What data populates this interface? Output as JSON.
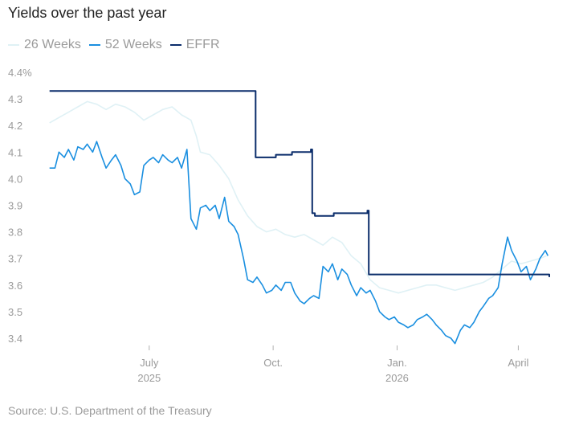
{
  "chart_data": {
    "type": "line",
    "title": "Yields over the past year",
    "source": "Source: U.S. Department of the Treasury",
    "ylim": [
      3.4,
      4.4
    ],
    "y_ticks": [
      {
        "value": 4.4,
        "label": "4.4%"
      },
      {
        "value": 4.3,
        "label": "4.3"
      },
      {
        "value": 4.2,
        "label": "4.2"
      },
      {
        "value": 4.1,
        "label": "4.1"
      },
      {
        "value": 4.0,
        "label": "4.0"
      },
      {
        "value": 3.9,
        "label": "3.9"
      },
      {
        "value": 3.8,
        "label": "3.8"
      },
      {
        "value": 3.7,
        "label": "3.7"
      },
      {
        "value": 3.6,
        "label": "3.6"
      },
      {
        "value": 3.5,
        "label": "3.5"
      },
      {
        "value": 3.4,
        "label": "3.4"
      }
    ],
    "xlim": [
      "2025-04-17",
      "2026-04-24"
    ],
    "x_ticks": [
      {
        "date": "2025-07-01",
        "label": "July",
        "sublabel": "2025"
      },
      {
        "date": "2025-10-01",
        "label": "Oct.",
        "sublabel": ""
      },
      {
        "date": "2026-01-01",
        "label": "Jan.",
        "sublabel": "2026"
      },
      {
        "date": "2026-04-01",
        "label": "April",
        "sublabel": ""
      }
    ],
    "grid": false,
    "legend_position": "top-left",
    "series": [
      {
        "name": "26 Weeks",
        "color": "#dff1f5",
        "step": false,
        "points": [
          [
            "2025-04-18",
            4.21
          ],
          [
            "2025-04-25",
            4.23
          ],
          [
            "2025-05-02",
            4.25
          ],
          [
            "2025-05-09",
            4.27
          ],
          [
            "2025-05-16",
            4.29
          ],
          [
            "2025-05-23",
            4.28
          ],
          [
            "2025-05-30",
            4.26
          ],
          [
            "2025-06-06",
            4.28
          ],
          [
            "2025-06-13",
            4.27
          ],
          [
            "2025-06-20",
            4.25
          ],
          [
            "2025-06-27",
            4.22
          ],
          [
            "2025-07-04",
            4.24
          ],
          [
            "2025-07-11",
            4.26
          ],
          [
            "2025-07-18",
            4.27
          ],
          [
            "2025-07-25",
            4.24
          ],
          [
            "2025-08-01",
            4.22
          ],
          [
            "2025-08-05",
            4.16
          ],
          [
            "2025-08-08",
            4.1
          ],
          [
            "2025-08-15",
            4.09
          ],
          [
            "2025-08-22",
            4.05
          ],
          [
            "2025-08-29",
            4.0
          ],
          [
            "2025-09-05",
            3.92
          ],
          [
            "2025-09-12",
            3.86
          ],
          [
            "2025-09-19",
            3.82
          ],
          [
            "2025-09-26",
            3.8
          ],
          [
            "2025-10-03",
            3.81
          ],
          [
            "2025-10-10",
            3.79
          ],
          [
            "2025-10-17",
            3.78
          ],
          [
            "2025-10-24",
            3.79
          ],
          [
            "2025-10-31",
            3.77
          ],
          [
            "2025-11-07",
            3.75
          ],
          [
            "2025-11-14",
            3.78
          ],
          [
            "2025-11-21",
            3.76
          ],
          [
            "2025-11-28",
            3.71
          ],
          [
            "2025-12-05",
            3.68
          ],
          [
            "2025-12-12",
            3.62
          ],
          [
            "2025-12-19",
            3.59
          ],
          [
            "2025-12-26",
            3.58
          ],
          [
            "2026-01-02",
            3.57
          ],
          [
            "2026-01-09",
            3.58
          ],
          [
            "2026-01-16",
            3.59
          ],
          [
            "2026-01-23",
            3.6
          ],
          [
            "2026-01-30",
            3.6
          ],
          [
            "2026-02-06",
            3.59
          ],
          [
            "2026-02-13",
            3.58
          ],
          [
            "2026-02-20",
            3.59
          ],
          [
            "2026-02-27",
            3.6
          ],
          [
            "2026-03-06",
            3.61
          ],
          [
            "2026-03-13",
            3.63
          ],
          [
            "2026-03-20",
            3.66
          ],
          [
            "2026-03-27",
            3.69
          ],
          [
            "2026-04-03",
            3.68
          ],
          [
            "2026-04-10",
            3.69
          ],
          [
            "2026-04-17",
            3.7
          ],
          [
            "2026-04-22",
            3.71
          ]
        ]
      },
      {
        "name": "52 Weeks",
        "color": "#1a8fe0",
        "step": false,
        "points": [
          [
            "2025-04-18",
            4.04
          ],
          [
            "2025-04-22",
            4.04
          ],
          [
            "2025-04-25",
            4.1
          ],
          [
            "2025-04-29",
            4.08
          ],
          [
            "2025-05-02",
            4.11
          ],
          [
            "2025-05-06",
            4.07
          ],
          [
            "2025-05-09",
            4.12
          ],
          [
            "2025-05-13",
            4.11
          ],
          [
            "2025-05-16",
            4.13
          ],
          [
            "2025-05-20",
            4.1
          ],
          [
            "2025-05-23",
            4.14
          ],
          [
            "2025-05-27",
            4.08
          ],
          [
            "2025-05-30",
            4.04
          ],
          [
            "2025-06-03",
            4.07
          ],
          [
            "2025-06-06",
            4.09
          ],
          [
            "2025-06-10",
            4.05
          ],
          [
            "2025-06-13",
            4.0
          ],
          [
            "2025-06-17",
            3.98
          ],
          [
            "2025-06-20",
            3.94
          ],
          [
            "2025-06-24",
            3.95
          ],
          [
            "2025-06-27",
            4.05
          ],
          [
            "2025-07-01",
            4.07
          ],
          [
            "2025-07-04",
            4.08
          ],
          [
            "2025-07-08",
            4.06
          ],
          [
            "2025-07-11",
            4.09
          ],
          [
            "2025-07-15",
            4.07
          ],
          [
            "2025-07-18",
            4.06
          ],
          [
            "2025-07-22",
            4.08
          ],
          [
            "2025-07-25",
            4.04
          ],
          [
            "2025-07-29",
            4.11
          ],
          [
            "2025-08-01",
            3.85
          ],
          [
            "2025-08-05",
            3.81
          ],
          [
            "2025-08-08",
            3.89
          ],
          [
            "2025-08-12",
            3.9
          ],
          [
            "2025-08-15",
            3.88
          ],
          [
            "2025-08-19",
            3.9
          ],
          [
            "2025-08-22",
            3.85
          ],
          [
            "2025-08-26",
            3.93
          ],
          [
            "2025-08-29",
            3.84
          ],
          [
            "2025-09-02",
            3.82
          ],
          [
            "2025-09-05",
            3.79
          ],
          [
            "2025-09-09",
            3.7
          ],
          [
            "2025-09-12",
            3.62
          ],
          [
            "2025-09-16",
            3.61
          ],
          [
            "2025-09-19",
            3.63
          ],
          [
            "2025-09-23",
            3.6
          ],
          [
            "2025-09-26",
            3.57
          ],
          [
            "2025-09-30",
            3.58
          ],
          [
            "2025-10-03",
            3.6
          ],
          [
            "2025-10-07",
            3.58
          ],
          [
            "2025-10-10",
            3.61
          ],
          [
            "2025-10-14",
            3.61
          ],
          [
            "2025-10-17",
            3.57
          ],
          [
            "2025-10-21",
            3.54
          ],
          [
            "2025-10-24",
            3.53
          ],
          [
            "2025-10-28",
            3.55
          ],
          [
            "2025-10-31",
            3.56
          ],
          [
            "2025-11-04",
            3.55
          ],
          [
            "2025-11-07",
            3.67
          ],
          [
            "2025-11-11",
            3.65
          ],
          [
            "2025-11-14",
            3.68
          ],
          [
            "2025-11-18",
            3.62
          ],
          [
            "2025-11-21",
            3.66
          ],
          [
            "2025-11-25",
            3.64
          ],
          [
            "2025-11-28",
            3.6
          ],
          [
            "2025-12-02",
            3.56
          ],
          [
            "2025-12-05",
            3.59
          ],
          [
            "2025-12-09",
            3.57
          ],
          [
            "2025-12-12",
            3.58
          ],
          [
            "2025-12-16",
            3.54
          ],
          [
            "2025-12-19",
            3.5
          ],
          [
            "2025-12-23",
            3.48
          ],
          [
            "2025-12-26",
            3.47
          ],
          [
            "2025-12-30",
            3.48
          ],
          [
            "2026-01-02",
            3.46
          ],
          [
            "2026-01-06",
            3.45
          ],
          [
            "2026-01-09",
            3.44
          ],
          [
            "2026-01-13",
            3.45
          ],
          [
            "2026-01-16",
            3.47
          ],
          [
            "2026-01-20",
            3.48
          ],
          [
            "2026-01-23",
            3.49
          ],
          [
            "2026-01-27",
            3.47
          ],
          [
            "2026-01-30",
            3.45
          ],
          [
            "2026-02-03",
            3.43
          ],
          [
            "2026-02-06",
            3.41
          ],
          [
            "2026-02-10",
            3.4
          ],
          [
            "2026-02-13",
            3.38
          ],
          [
            "2026-02-17",
            3.43
          ],
          [
            "2026-02-20",
            3.45
          ],
          [
            "2026-02-24",
            3.44
          ],
          [
            "2026-02-27",
            3.46
          ],
          [
            "2026-03-03",
            3.5
          ],
          [
            "2026-03-06",
            3.52
          ],
          [
            "2026-03-10",
            3.55
          ],
          [
            "2026-03-13",
            3.56
          ],
          [
            "2026-03-17",
            3.59
          ],
          [
            "2026-03-20",
            3.68
          ],
          [
            "2026-03-24",
            3.78
          ],
          [
            "2026-03-27",
            3.73
          ],
          [
            "2026-03-31",
            3.69
          ],
          [
            "2026-04-03",
            3.65
          ],
          [
            "2026-04-07",
            3.67
          ],
          [
            "2026-04-10",
            3.62
          ],
          [
            "2026-04-14",
            3.66
          ],
          [
            "2026-04-17",
            3.7
          ],
          [
            "2026-04-21",
            3.73
          ],
          [
            "2026-04-23",
            3.71
          ]
        ]
      },
      {
        "name": "EFFR",
        "color": "#0b2d6b",
        "step": true,
        "points": [
          [
            "2025-04-18",
            4.33
          ],
          [
            "2025-09-17",
            4.33
          ],
          [
            "2025-09-18",
            4.08
          ],
          [
            "2025-10-03",
            4.09
          ],
          [
            "2025-10-15",
            4.1
          ],
          [
            "2025-10-29",
            4.11
          ],
          [
            "2025-10-30",
            3.87
          ],
          [
            "2025-11-01",
            3.86
          ],
          [
            "2025-11-15",
            3.87
          ],
          [
            "2025-12-10",
            3.88
          ],
          [
            "2025-12-11",
            3.64
          ],
          [
            "2026-04-23",
            3.64
          ],
          [
            "2026-04-24",
            3.63
          ]
        ]
      }
    ]
  }
}
